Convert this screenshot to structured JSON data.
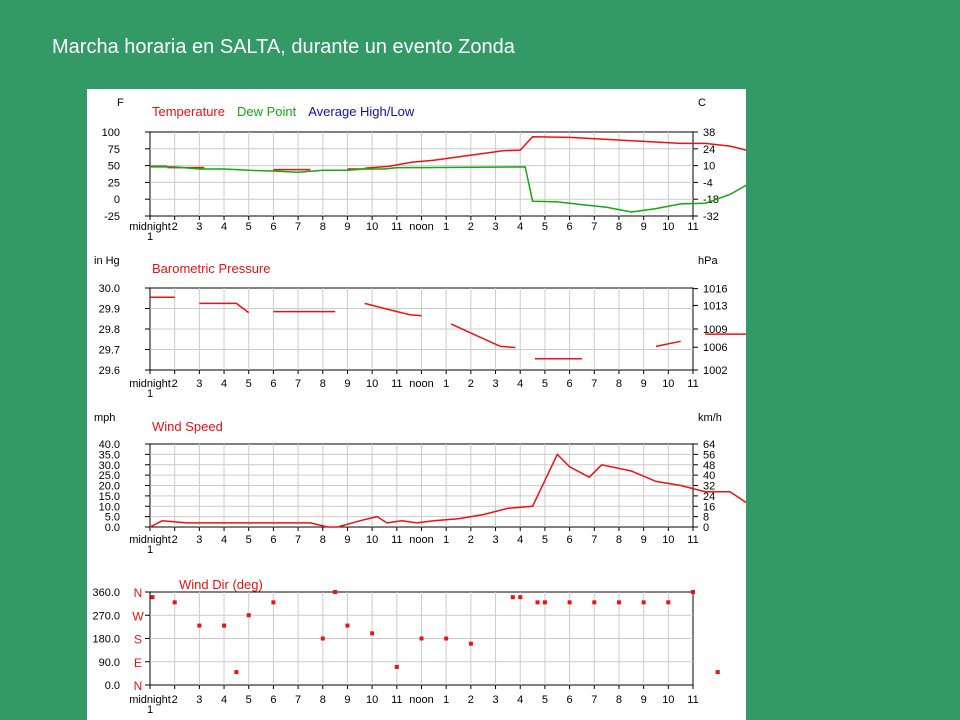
{
  "slide": {
    "title": "Marcha horaria en SALTA, durante un evento Zonda"
  },
  "x_labels": [
    "midnight",
    "2",
    "3",
    "4",
    "5",
    "6",
    "7",
    "8",
    "9",
    "10",
    "11",
    "noon",
    "1",
    "2",
    "3",
    "4",
    "5",
    "6",
    "7",
    "8",
    "9",
    "10",
    "11"
  ],
  "x_sub_label": "1",
  "colors": {
    "red": "#ee1111",
    "green": "#11aa11",
    "blue": "#1111aa",
    "grid": "#cccccc",
    "axis": "#000000"
  },
  "chart_data": [
    {
      "type": "line",
      "left_unit": "F",
      "right_unit": "C",
      "legend": [
        "Temperature",
        "Dew Point",
        "Average High/Low"
      ],
      "ylim": [
        -25,
        100
      ],
      "left_ticks": [
        "100",
        "75",
        "50",
        "25",
        "0",
        "-25"
      ],
      "left_tick_values": [
        100,
        75,
        50,
        25,
        0,
        -25
      ],
      "right_ticks": [
        "38",
        "24",
        "10",
        "-4",
        "-18",
        "-32"
      ],
      "series": [
        {
          "name": "Temperature",
          "segments": [
            [
              [
                0,
                49
              ],
              [
                0.7,
                49
              ]
            ],
            [
              [
                0.7,
                47
              ],
              [
                2.2,
                47
              ]
            ],
            [
              [
                5,
                44
              ],
              [
                6.5,
                44
              ]
            ],
            [
              [
                8,
                45
              ],
              [
                8.7,
                45
              ]
            ],
            [
              [
                8.7,
                46
              ],
              [
                9.7,
                49
              ],
              [
                10.6,
                55
              ],
              [
                11.5,
                58
              ],
              [
                12.5,
                63
              ],
              [
                13.5,
                68
              ],
              [
                14.3,
                72
              ],
              [
                15,
                73
              ],
              [
                15.5,
                93
              ],
              [
                17,
                92
              ],
              [
                18.5,
                89
              ],
              [
                20,
                86
              ],
              [
                21.5,
                83
              ],
              [
                22.5,
                83
              ],
              [
                23.5,
                79
              ],
              [
                24.5,
                70
              ]
            ]
          ]
        },
        {
          "name": "Dew Point",
          "segments": [
            [
              [
                0,
                48
              ],
              [
                1,
                48
              ],
              [
                2,
                45
              ],
              [
                3,
                45
              ],
              [
                4,
                43
              ],
              [
                5,
                42
              ],
              [
                6,
                40
              ],
              [
                7,
                43
              ],
              [
                8,
                43
              ],
              [
                8.7,
                45
              ],
              [
                9.5,
                45
              ],
              [
                10,
                47
              ],
              [
                11,
                47
              ],
              [
                15.2,
                48
              ],
              [
                15.5,
                -3
              ],
              [
                16.5,
                -4
              ],
              [
                17.5,
                -8
              ],
              [
                18.5,
                -12
              ],
              [
                19.5,
                -19
              ],
              [
                20.5,
                -14
              ],
              [
                21.5,
                -7
              ],
              [
                22.5,
                -6
              ],
              [
                23.5,
                7
              ],
              [
                24.5,
                28
              ]
            ]
          ]
        }
      ]
    },
    {
      "type": "line",
      "left_unit": "in Hg",
      "right_unit": "hPa",
      "legend": [
        "Barometric Pressure"
      ],
      "ylim": [
        29.6,
        30.0
      ],
      "left_ticks": [
        "30.0",
        "29.9",
        "29.8",
        "29.7",
        "29.6"
      ],
      "left_tick_values": [
        30.0,
        29.9,
        29.8,
        29.7,
        29.6
      ],
      "right_ticks": [
        "1016",
        "1013",
        "1009",
        "1006",
        "1002"
      ],
      "right_tick_values": [
        29.997,
        29.915,
        29.8,
        29.711,
        29.6
      ],
      "series": [
        {
          "name": "Barometric Pressure",
          "segments": [
            [
              [
                0,
                29.955
              ],
              [
                1,
                29.955
              ]
            ],
            [
              [
                2,
                29.925
              ],
              [
                3.5,
                29.925
              ],
              [
                4,
                29.88
              ]
            ],
            [
              [
                5,
                29.885
              ],
              [
                7.5,
                29.885
              ]
            ],
            [
              [
                8.7,
                29.925
              ],
              [
                9.5,
                29.9
              ],
              [
                10.5,
                29.87
              ],
              [
                11,
                29.865
              ]
            ],
            [
              [
                12.2,
                29.825
              ],
              [
                13,
                29.78
              ],
              [
                14.2,
                29.715
              ],
              [
                14.8,
                29.71
              ]
            ],
            [
              [
                15.6,
                29.655
              ],
              [
                17.5,
                29.655
              ]
            ],
            [
              [
                20.5,
                29.715
              ],
              [
                21.5,
                29.74
              ]
            ],
            [
              [
                22.5,
                29.775
              ],
              [
                24.5,
                29.775
              ]
            ]
          ]
        }
      ]
    },
    {
      "type": "line",
      "left_unit": "mph",
      "right_unit": "km/h",
      "legend": [
        "Wind Speed"
      ],
      "ylim": [
        0,
        40
      ],
      "left_ticks": [
        "40.0",
        "35.0",
        "30.0",
        "25.0",
        "20.0",
        "15.0",
        "10.0",
        "5.0",
        "0.0"
      ],
      "left_tick_values": [
        40,
        35,
        30,
        25,
        20,
        15,
        10,
        5,
        0
      ],
      "right_ticks": [
        "64",
        "56",
        "48",
        "40",
        "32",
        "24",
        "16",
        "8",
        "0"
      ],
      "right_tick_values": [
        40,
        35,
        30,
        25,
        20,
        15,
        10,
        5,
        0
      ],
      "series": [
        {
          "name": "Wind Speed",
          "segments": [
            [
              [
                0,
                0
              ],
              [
                0.5,
                3
              ],
              [
                1.5,
                2
              ],
              [
                2,
                2
              ],
              [
                3.5,
                2
              ],
              [
                4.5,
                2
              ],
              [
                5.5,
                2
              ],
              [
                6.5,
                2
              ],
              [
                7.2,
                0
              ],
              [
                7.6,
                0
              ],
              [
                8.5,
                3
              ],
              [
                9.2,
                5
              ],
              [
                9.6,
                2
              ],
              [
                10.2,
                3
              ],
              [
                10.8,
                2
              ],
              [
                11.5,
                3
              ],
              [
                12.5,
                4
              ],
              [
                13.5,
                6
              ],
              [
                14.5,
                9
              ],
              [
                15.5,
                10
              ],
              [
                16.5,
                35
              ],
              [
                17,
                29
              ],
              [
                17.8,
                24
              ],
              [
                18.3,
                30
              ],
              [
                19.5,
                27
              ],
              [
                20.5,
                22
              ],
              [
                21.5,
                20
              ],
              [
                22.5,
                17
              ],
              [
                23.5,
                17
              ],
              [
                24.5,
                9
              ],
              [
                25.5,
                4
              ]
            ]
          ]
        }
      ]
    },
    {
      "type": "scatter",
      "left_unit": "",
      "right_unit": "",
      "legend": [
        "Wind Dir (deg)"
      ],
      "ylim": [
        0,
        360
      ],
      "left_ticks": [
        "360.0",
        "270.0",
        "180.0",
        "90.0",
        "0.0"
      ],
      "left_tick_values": [
        360,
        270,
        180,
        90,
        0
      ],
      "compass_labels": [
        "N",
        "W",
        "S",
        "E",
        "N"
      ],
      "compass_values": [
        360,
        270,
        180,
        90,
        0
      ],
      "series": [
        {
          "name": "Wind Dir (deg)",
          "points": [
            [
              0.1,
              340
            ],
            [
              1,
              320
            ],
            [
              2,
              230
            ],
            [
              3,
              230
            ],
            [
              3.5,
              50
            ],
            [
              4,
              270
            ],
            [
              5,
              320
            ],
            [
              7,
              180
            ],
            [
              7.5,
              360
            ],
            [
              8,
              230
            ],
            [
              9,
              200
            ],
            [
              10,
              70
            ],
            [
              11,
              180
            ],
            [
              12,
              180
            ],
            [
              13,
              160
            ],
            [
              14.7,
              340
            ],
            [
              15,
              340
            ],
            [
              15.7,
              320
            ],
            [
              16,
              320
            ],
            [
              17,
              320
            ],
            [
              18,
              320
            ],
            [
              19,
              320
            ],
            [
              20,
              320
            ],
            [
              21,
              320
            ],
            [
              22,
              360
            ],
            [
              23,
              50
            ]
          ]
        }
      ]
    }
  ]
}
